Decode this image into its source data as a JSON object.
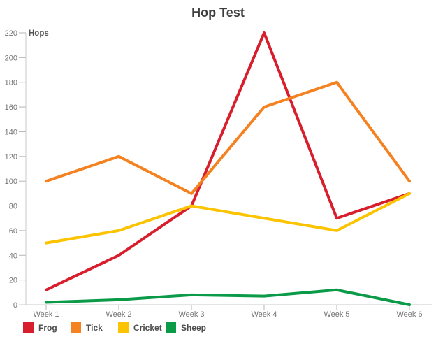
{
  "chart_data": {
    "type": "line",
    "title": "Hop Test",
    "ylabel": "Hops",
    "xlabel": "",
    "categories": [
      "Week 1",
      "Week 2",
      "Week 3",
      "Week 4",
      "Week 5",
      "Week 6"
    ],
    "series": [
      {
        "name": "Frog",
        "color": "#D81E2D",
        "values": [
          12,
          40,
          80,
          220,
          70,
          90
        ]
      },
      {
        "name": "Tick",
        "color": "#F58220",
        "values": [
          100,
          120,
          90,
          160,
          180,
          100
        ]
      },
      {
        "name": "Cricket",
        "color": "#FCC400",
        "values": [
          50,
          60,
          80,
          70,
          60,
          90
        ]
      },
      {
        "name": "Sheep",
        "color": "#0B9B48",
        "values": [
          2,
          4,
          8,
          7,
          12,
          0
        ]
      }
    ],
    "ylim": [
      0,
      220
    ],
    "ytick_step": 20,
    "grid": "off",
    "legend_position": "bottom-left",
    "line_width": 4
  },
  "colors": {
    "axis_line": "#c9c9c9",
    "tick_mark": "#b5b5b5",
    "tick_label": "#737373",
    "title_text": "#3e3e3e",
    "legend_text": "#4d4d4d",
    "axis_title_text": "#555555"
  }
}
